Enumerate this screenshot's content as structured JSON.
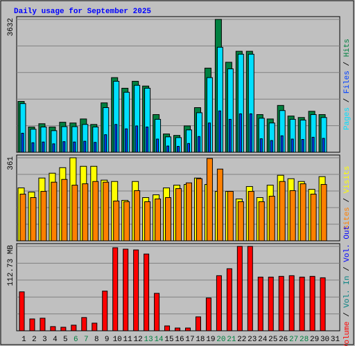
{
  "chart_data": {
    "type": "bar",
    "title": "Daily usage for September 2025",
    "categories": [
      "1",
      "2",
      "3",
      "4",
      "5",
      "6",
      "7",
      "8",
      "9",
      "10",
      "11",
      "12",
      "13",
      "14",
      "15",
      "16",
      "17",
      "18",
      "19",
      "20",
      "21",
      "22",
      "23",
      "24",
      "25",
      "26",
      "27",
      "28",
      "29",
      "30",
      "31"
    ],
    "category_colors": [
      "#000000",
      "#000000",
      "#000000",
      "#000000",
      "#000000",
      "#008040",
      "#008040",
      "#000000",
      "#000000",
      "#000000",
      "#000000",
      "#000000",
      "#008040",
      "#008040",
      "#000000",
      "#000000",
      "#000000",
      "#000000",
      "#000000",
      "#008040",
      "#008040",
      "#000000",
      "#000000",
      "#000000",
      "#000000",
      "#000000",
      "#008040",
      "#008040",
      "#000000",
      "#000000",
      "#000000"
    ],
    "legend_separator": " / ",
    "panels": [
      {
        "ylim": [
          0,
          3632
        ],
        "yticks": [
          3632
        ],
        "series": [
          {
            "name": "Hits",
            "color": "#008040",
            "values": [
              1390,
              690,
              780,
              690,
              820,
              800,
              910,
              760,
              1350,
              2040,
              1750,
              1940,
              1810,
              1030,
              500,
              460,
              720,
              1220,
              2300,
              3632,
              2460,
              2760,
              2760,
              1030,
              910,
              1280,
              990,
              950,
              1120,
              1030,
              null
            ]
          },
          {
            "name": "Files",
            "color": "#0040FF",
            "values": [
              520,
              260,
              280,
              230,
              290,
              280,
              300,
              270,
              480,
              760,
              640,
              720,
              690,
              360,
              170,
              160,
              240,
              430,
              800,
              1130,
              900,
              1050,
              1050,
              370,
              320,
              450,
              360,
              350,
              410,
              380,
              null
            ]
          },
          {
            "name": "Pages",
            "color": "#00E0FF",
            "values": [
              1330,
              630,
              690,
              590,
              700,
              700,
              760,
              690,
              1220,
              1940,
              1640,
              1830,
              1750,
              900,
              420,
              400,
              610,
              1080,
              2040,
              2870,
              2280,
              2680,
              2680,
              930,
              800,
              1140,
              900,
              880,
              1030,
              950,
              null
            ]
          }
        ]
      },
      {
        "ylim": [
          0,
          361
        ],
        "yticks": [
          361
        ],
        "series": [
          {
            "name": "Visits",
            "color": "#FFFF00",
            "values": [
              230,
              212,
              273,
              294,
              318,
              361,
              324,
              324,
              264,
              258,
              176,
              258,
              188,
              200,
              230,
              242,
              245,
              273,
              245,
              215,
              215,
              182,
              236,
              188,
              242,
              285,
              270,
              258,
              224,
              279,
              null
            ]
          },
          {
            "name": "Sites",
            "color": "#FF8000",
            "values": [
              203,
              188,
              215,
              255,
              267,
              242,
              248,
              258,
              255,
              173,
              170,
              218,
              170,
              182,
              188,
              227,
              252,
              270,
              358,
              312,
              215,
              170,
              215,
              170,
              194,
              258,
              218,
              248,
              203,
              245,
              null
            ]
          }
        ]
      },
      {
        "ylim": [
          0,
          112.73
        ],
        "yticks": [
          {
            "value": 112.73,
            "label": "112.73 MB"
          }
        ],
        "series": [
          {
            "name": "Volume",
            "color": "#FF0000",
            "values": [
              52,
              15.8,
              16.8,
              5.6,
              4.7,
              7.5,
              17.7,
              10.2,
              53,
              110.9,
              109,
              108,
              102.5,
              50,
              6.5,
              3.7,
              3.7,
              18.6,
              43.8,
              73.6,
              82.9,
              112.73,
              112.7,
              71.7,
              71.7,
              72.7,
              73.6,
              71.7,
              72.7,
              70.8,
              null
            ]
          },
          {
            "name": "Vol. In",
            "color": "#008080",
            "values": [
              0,
              0,
              0,
              0,
              0,
              0,
              0,
              0,
              0,
              0,
              0,
              0,
              0,
              0,
              0,
              0,
              0,
              0,
              0,
              0,
              0,
              0,
              0,
              0,
              0,
              0,
              0,
              0,
              0,
              0,
              null
            ]
          },
          {
            "name": "Vol. Out",
            "color": "#0000FF",
            "values": [
              0,
              0,
              0,
              0,
              0,
              0,
              0,
              0,
              0,
              0,
              0,
              0,
              0,
              0,
              0,
              0,
              0,
              0,
              0,
              0,
              0,
              0,
              0,
              0,
              0,
              0,
              0,
              0,
              0,
              0,
              null
            ]
          }
        ]
      }
    ]
  }
}
